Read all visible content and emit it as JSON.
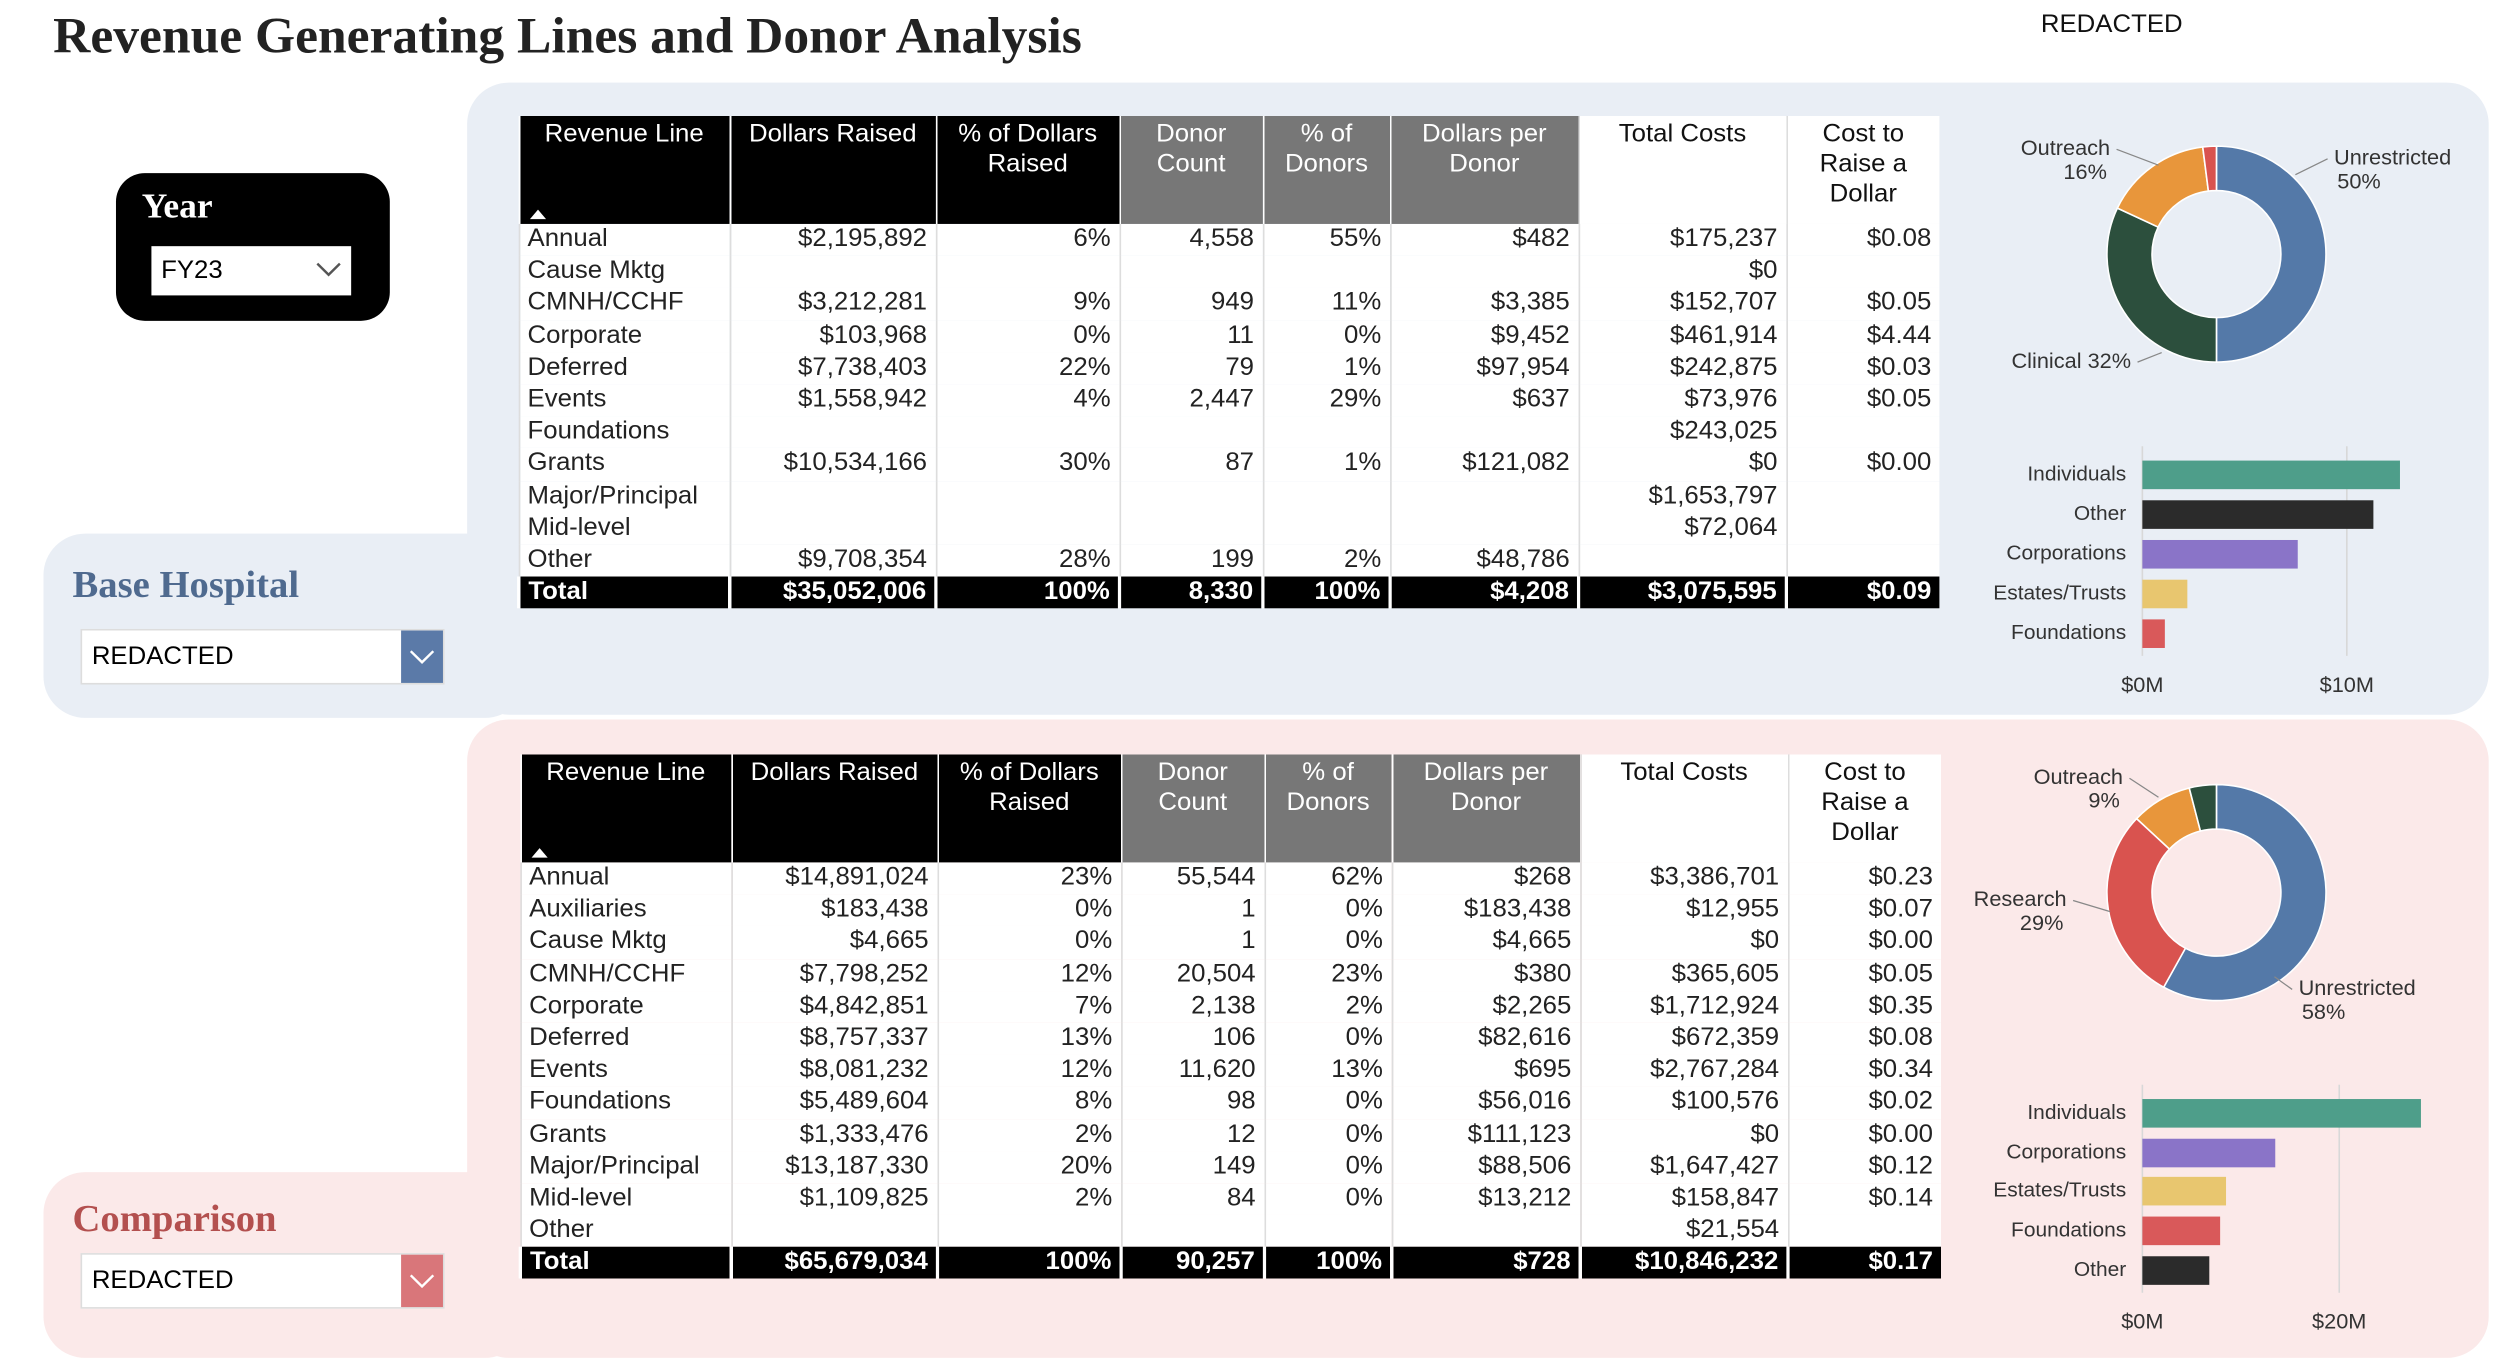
{
  "header": {
    "title": "Revenue Generating Lines and Donor Analysis",
    "user": "REDACTED"
  },
  "year": {
    "label": "Year",
    "value": "FY23"
  },
  "panels": [
    {
      "label": "Base Hospital",
      "selection": "REDACTED",
      "table": {
        "columns": [
          "Revenue Line",
          "Dollars Raised",
          "% of Dollars Raised",
          "Donor Count",
          "% of Donors",
          "Dollars per Donor",
          "Total Costs",
          "Cost to Raise a Dollar"
        ],
        "rows": [
          [
            "Annual",
            "$2,195,892",
            "6%",
            "4,558",
            "55%",
            "$482",
            "$175,237",
            "$0.08"
          ],
          [
            "Cause Mktg",
            null,
            null,
            null,
            null,
            null,
            "$0",
            null
          ],
          [
            "CMNH/CCHF",
            "$3,212,281",
            "9%",
            "949",
            "11%",
            "$3,385",
            "$152,707",
            "$0.05"
          ],
          [
            "Corporate",
            "$103,968",
            "0%",
            "11",
            "0%",
            "$9,452",
            "$461,914",
            "$4.44"
          ],
          [
            "Deferred",
            "$7,738,403",
            "22%",
            "79",
            "1%",
            "$97,954",
            "$242,875",
            "$0.03"
          ],
          [
            "Events",
            "$1,558,942",
            "4%",
            "2,447",
            "29%",
            "$637",
            "$73,976",
            "$0.05"
          ],
          [
            "Foundations",
            null,
            null,
            null,
            null,
            null,
            "$243,025",
            null
          ],
          [
            "Grants",
            "$10,534,166",
            "30%",
            "87",
            "1%",
            "$121,082",
            "$0",
            "$0.00"
          ],
          [
            "Major/Principal",
            null,
            null,
            null,
            null,
            null,
            "$1,653,797",
            null
          ],
          [
            "Mid-level",
            null,
            null,
            null,
            null,
            null,
            "$72,064",
            null
          ],
          [
            "Other",
            "$9,708,354",
            "28%",
            "199",
            "2%",
            "$48,786",
            null,
            null
          ]
        ],
        "total": [
          "Total",
          "$35,052,006",
          "100%",
          "8,330",
          "100%",
          "$4,208",
          "$3,075,595",
          "$0.09"
        ]
      },
      "donut": {
        "type": "pie",
        "categories": [
          "Unrestricted",
          "Clinical",
          "Outreach",
          null
        ],
        "values": [
          50,
          32,
          16,
          2
        ],
        "value_labels": [
          "50%",
          "32%",
          "16%",
          null
        ],
        "colors": [
          "#5479a8",
          "#2c4f3d",
          "#e8963b",
          "#d9534f"
        ]
      },
      "bars": {
        "type": "bar",
        "categories": [
          "Individuals",
          "Other",
          "Corporations",
          "Estates/Trusts",
          "Foundations"
        ],
        "values": [
          12600000,
          11300000,
          7600000,
          2200000,
          1100000
        ],
        "colors": [
          "#4e9e8a",
          "#2b2b2b",
          "#8a74c8",
          "#e8c66f",
          "#d9595a"
        ],
        "xlim": [
          0,
          13000000
        ],
        "xticks": [
          {
            "value": 0,
            "label": "$0M"
          },
          {
            "value": 10000000,
            "label": "$10M"
          }
        ]
      }
    },
    {
      "label": "Comparison",
      "selection": "REDACTED",
      "table": {
        "columns": [
          "Revenue Line",
          "Dollars Raised",
          "% of Dollars Raised",
          "Donor Count",
          "% of Donors",
          "Dollars per Donor",
          "Total Costs",
          "Cost to Raise a Dollar"
        ],
        "rows": [
          [
            "Annual",
            "$14,891,024",
            "23%",
            "55,544",
            "62%",
            "$268",
            "$3,386,701",
            "$0.23"
          ],
          [
            "Auxiliaries",
            "$183,438",
            "0%",
            "1",
            "0%",
            "$183,438",
            "$12,955",
            "$0.07"
          ],
          [
            "Cause Mktg",
            "$4,665",
            "0%",
            "1",
            "0%",
            "$4,665",
            "$0",
            "$0.00"
          ],
          [
            "CMNH/CCHF",
            "$7,798,252",
            "12%",
            "20,504",
            "23%",
            "$380",
            "$365,605",
            "$0.05"
          ],
          [
            "Corporate",
            "$4,842,851",
            "7%",
            "2,138",
            "2%",
            "$2,265",
            "$1,712,924",
            "$0.35"
          ],
          [
            "Deferred",
            "$8,757,337",
            "13%",
            "106",
            "0%",
            "$82,616",
            "$672,359",
            "$0.08"
          ],
          [
            "Events",
            "$8,081,232",
            "12%",
            "11,620",
            "13%",
            "$695",
            "$2,767,284",
            "$0.34"
          ],
          [
            "Foundations",
            "$5,489,604",
            "8%",
            "98",
            "0%",
            "$56,016",
            "$100,576",
            "$0.02"
          ],
          [
            "Grants",
            "$1,333,476",
            "2%",
            "12",
            "0%",
            "$111,123",
            "$0",
            "$0.00"
          ],
          [
            "Major/Principal",
            "$13,187,330",
            "20%",
            "149",
            "0%",
            "$88,506",
            "$1,647,427",
            "$0.12"
          ],
          [
            "Mid-level",
            "$1,109,825",
            "2%",
            "84",
            "0%",
            "$13,212",
            "$158,847",
            "$0.14"
          ],
          [
            "Other",
            null,
            null,
            null,
            null,
            null,
            "$21,554",
            null
          ]
        ],
        "total": [
          "Total",
          "$65,679,034",
          "100%",
          "90,257",
          "100%",
          "$728",
          "$10,846,232",
          "$0.17"
        ]
      },
      "donut": {
        "type": "pie",
        "categories": [
          "Unrestricted",
          "Research",
          "Outreach",
          null
        ],
        "values": [
          58,
          29,
          9,
          4
        ],
        "value_labels": [
          "58%",
          "29%",
          "9%",
          null
        ],
        "colors": [
          "#5479a8",
          "#d9534f",
          "#e8963b",
          "#2c4f3d"
        ]
      },
      "bars": {
        "type": "bar",
        "categories": [
          "Individuals",
          "Corporations",
          "Estates/Trusts",
          "Foundations",
          "Other"
        ],
        "values": [
          28300000,
          13500000,
          8500000,
          7900000,
          6800000
        ],
        "colors": [
          "#4e9e8a",
          "#8a74c8",
          "#e8c66f",
          "#d9595a",
          "#2b2b2b"
        ],
        "xlim": [
          0,
          27000000
        ],
        "xticks": [
          {
            "value": 0,
            "label": "$0M"
          },
          {
            "value": 20000000,
            "label": "$20M"
          }
        ]
      }
    }
  ]
}
